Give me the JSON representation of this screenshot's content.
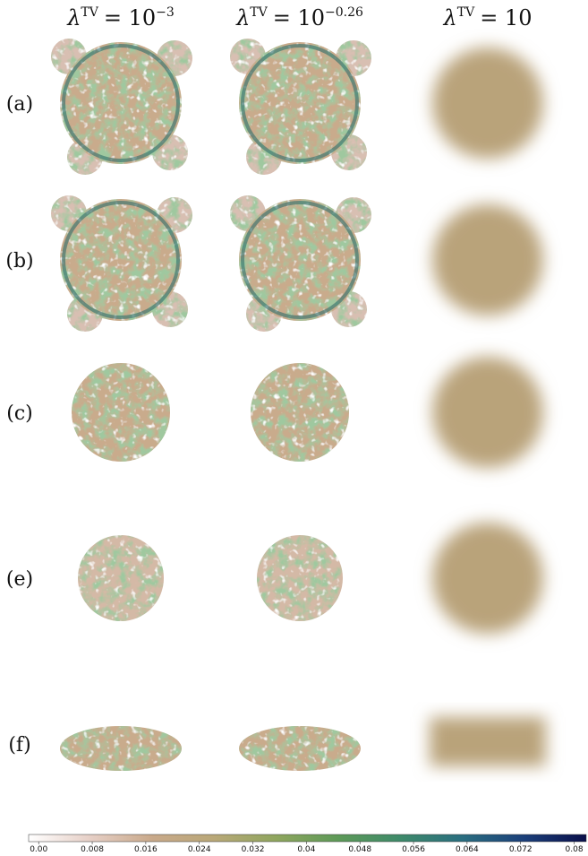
{
  "columns": [
    {
      "symbol": "λ",
      "superscript": "TV",
      "relation": "= 10",
      "exponent": "−3"
    },
    {
      "symbol": "λ",
      "superscript": "TV",
      "relation": "= 10",
      "exponent": "−0.26"
    },
    {
      "symbol": "λ",
      "superscript": "TV",
      "relation": "= 10"
    }
  ],
  "rows": [
    "(a)",
    "(b)",
    "(c)",
    "(e)",
    "(f)"
  ],
  "colorbar": {
    "lim": [
      -0.0015,
      0.0818
    ],
    "ticks": [
      {
        "value": 0,
        "label": "0.00"
      },
      0.008,
      0.016,
      0.024,
      0.032,
      0.04,
      0.048,
      0.056,
      0.064,
      0.072,
      0.08
    ],
    "colors": [
      "#ffffff",
      "#e6cfc6",
      "#c9a98a",
      "#b9a878",
      "#8fa65e",
      "#5d9a58",
      "#3e8a6a",
      "#2a6e80",
      "#1b3f7a",
      "#0a0f4a"
    ]
  }
}
